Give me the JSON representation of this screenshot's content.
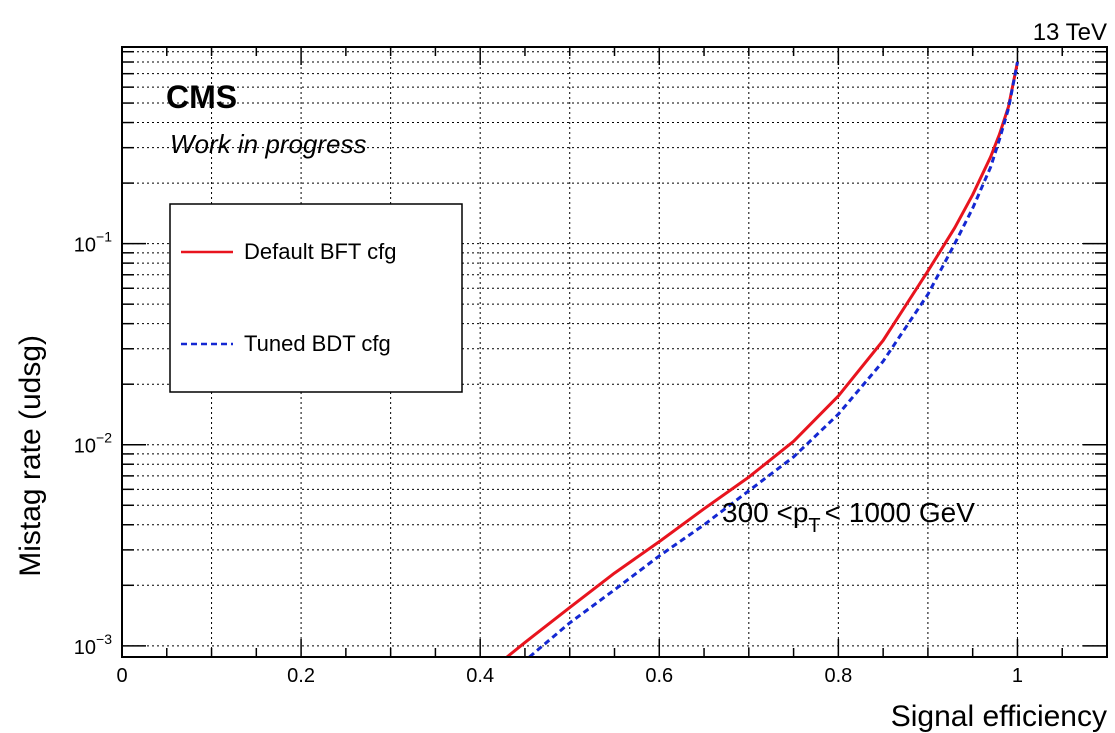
{
  "chart_data": {
    "type": "line",
    "title": "",
    "xlabel": "Signal efficiency",
    "ylabel": "Mistag rate (udsg)",
    "xlim": [
      0,
      1.1
    ],
    "ylim": [
      0.00088,
      0.95
    ],
    "yscale": "log",
    "grid": true,
    "x_ticks": [
      {
        "value": 0,
        "label": "0"
      },
      {
        "value": 0.2,
        "label": "0.2"
      },
      {
        "value": 0.4,
        "label": "0.4"
      },
      {
        "value": 0.6,
        "label": "0.6"
      },
      {
        "value": 0.8,
        "label": "0.8"
      },
      {
        "value": 1,
        "label": "1"
      }
    ],
    "y_ticks": [
      {
        "value": 0.001,
        "base": "10",
        "exp": "−3"
      },
      {
        "value": 0.01,
        "base": "10",
        "exp": "−2"
      },
      {
        "value": 0.1,
        "base": "10",
        "exp": "−1"
      }
    ],
    "legend_placement": "upper-left",
    "series": [
      {
        "name": "Default BFT cfg",
        "color": "#e8141e",
        "style": "solid",
        "x": [
          0.43,
          0.45,
          0.5,
          0.55,
          0.6,
          0.65,
          0.7,
          0.75,
          0.8,
          0.85,
          0.9,
          0.93,
          0.95,
          0.97,
          0.98,
          0.99,
          1.0
        ],
        "y": [
          0.00088,
          0.00104,
          0.00155,
          0.0023,
          0.0033,
          0.0048,
          0.0069,
          0.0104,
          0.0175,
          0.033,
          0.073,
          0.12,
          0.175,
          0.27,
          0.35,
          0.48,
          0.8
        ]
      },
      {
        "name": "Tuned BDT cfg",
        "color": "#1428d2",
        "style": "dashed",
        "x": [
          0.455,
          0.5,
          0.55,
          0.6,
          0.65,
          0.7,
          0.75,
          0.8,
          0.85,
          0.9,
          0.93,
          0.95,
          0.97,
          0.98,
          0.99,
          1.0
        ],
        "y": [
          0.00088,
          0.0013,
          0.0019,
          0.0028,
          0.004,
          0.0059,
          0.0087,
          0.0142,
          0.026,
          0.056,
          0.1,
          0.15,
          0.24,
          0.33,
          0.47,
          0.8
        ]
      }
    ],
    "annotations": {
      "experiment": "CMS",
      "status": "Work in progress",
      "energy": "13 TeV",
      "region_pre": "300 <p",
      "region_sub": "T",
      "region_post": "< 1000 GeV"
    }
  }
}
